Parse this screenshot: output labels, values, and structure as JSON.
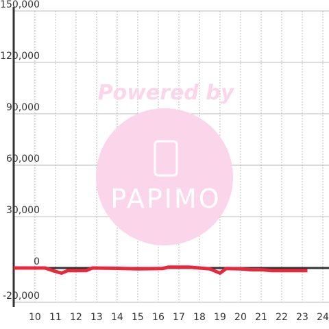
{
  "chart_data": {
    "type": "line",
    "annotations": [
      "Powered by",
      "PAPIMO"
    ],
    "x": [
      8.97,
      10.5,
      11,
      11.3,
      11.6,
      12.5,
      12.8,
      14,
      15,
      16.2,
      16.5,
      17.5,
      18,
      18.5,
      19,
      19.3,
      20,
      20.5,
      21,
      21.5,
      22.5,
      23.25
    ],
    "series": [
      {
        "color": "#e8283c",
        "values": [
          0,
          0,
          -2000,
          -3000,
          -1500,
          -1500,
          0,
          -200,
          -500,
          -300,
          500,
          500,
          0,
          -500,
          -3000,
          -300,
          -500,
          -1000,
          -1000,
          -1500,
          -1500,
          -1500
        ]
      }
    ],
    "xlim": [
      8.97,
      24.3
    ],
    "xticks": [
      10,
      11,
      12,
      13,
      14,
      15,
      16,
      17,
      18,
      19,
      20,
      21,
      22,
      23,
      24
    ],
    "ylim": [
      -20000,
      150000
    ],
    "yticks": [
      {
        "value": 150000,
        "label": "150,000"
      },
      {
        "value": 120000,
        "label": "120,000"
      },
      {
        "value": 90000,
        "label": "90,000"
      },
      {
        "value": 60000,
        "label": "60,000"
      },
      {
        "value": 30000,
        "label": "30,000"
      },
      0,
      {
        "value": -20000,
        "label": "-20,000"
      }
    ],
    "grid": true
  }
}
